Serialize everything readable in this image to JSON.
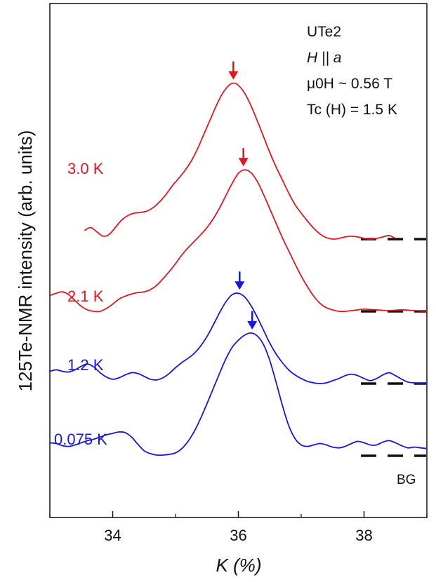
{
  "chart_data": {
    "type": "line",
    "title": "",
    "xlabel": "K (%)",
    "ylabel": "125Te-NMR intensity (arb. units)",
    "xlim": [
      33.0,
      39.0
    ],
    "x_ticks": [
      34,
      36,
      38
    ],
    "x_tick_labels": [
      "34",
      "36",
      "38"
    ],
    "y_ticks": [],
    "grid": false,
    "annotations": {
      "sample": "UTe2",
      "field_dir": "H || a",
      "field": "μ0H ~ 0.56 T",
      "tc": "Tc (H) = 1.5 K"
    },
    "bg_label": "BG",
    "colors": {
      "red": "#e8141c",
      "blue": "#1616e0",
      "black": "#111111"
    },
    "series": [
      {
        "name": "3.0 K",
        "color": "#e8141c",
        "offset": 3.0,
        "background": 0.0,
        "peak_arrow_x": 35.92,
        "x": [
          33.55,
          33.65,
          33.75,
          33.85,
          33.95,
          34.05,
          34.15,
          34.25,
          34.35,
          34.45,
          34.55,
          34.65,
          34.75,
          34.85,
          34.95,
          35.05,
          35.15,
          35.25,
          35.35,
          35.45,
          35.55,
          35.65,
          35.75,
          35.85,
          35.92,
          36.0,
          36.1,
          36.2,
          36.3,
          36.4,
          36.5,
          36.6,
          36.7,
          36.8,
          36.9,
          37.0,
          37.1,
          37.2,
          37.3,
          37.4,
          37.5,
          37.6,
          37.7,
          37.8,
          37.9,
          38.0,
          38.1,
          38.2,
          38.3,
          38.4,
          38.5
        ],
        "values": [
          0.12,
          0.16,
          0.1,
          0.04,
          0.07,
          0.17,
          0.27,
          0.33,
          0.36,
          0.37,
          0.39,
          0.44,
          0.52,
          0.62,
          0.74,
          0.84,
          0.95,
          1.08,
          1.25,
          1.45,
          1.65,
          1.85,
          2.02,
          2.13,
          2.16,
          2.13,
          2.02,
          1.85,
          1.64,
          1.42,
          1.2,
          1.0,
          0.82,
          0.64,
          0.48,
          0.36,
          0.25,
          0.15,
          0.07,
          0.02,
          0.0,
          0.01,
          0.03,
          0.04,
          0.03,
          0.01,
          0.0,
          0.01,
          0.03,
          0.05,
          0.01
        ]
      },
      {
        "name": "2.1 K",
        "color": "#e8141c",
        "offset": 2.0,
        "background": 0.0,
        "peak_arrow_x": 36.08,
        "x": [
          33.0,
          33.1,
          33.2,
          33.3,
          33.4,
          33.5,
          33.6,
          33.7,
          33.8,
          33.9,
          34.0,
          34.1,
          34.2,
          34.3,
          34.4,
          34.5,
          34.6,
          34.7,
          34.8,
          34.9,
          35.0,
          35.1,
          35.2,
          35.3,
          35.4,
          35.5,
          35.6,
          35.7,
          35.8,
          35.9,
          36.0,
          36.1,
          36.2,
          36.3,
          36.4,
          36.5,
          36.6,
          36.7,
          36.8,
          36.9,
          37.0,
          37.1,
          37.2,
          37.3,
          37.4,
          37.5,
          37.6,
          37.7,
          37.8,
          37.9,
          38.0,
          38.2,
          38.4,
          38.6,
          38.8,
          39.0
        ],
        "values": [
          0.22,
          0.25,
          0.27,
          0.23,
          0.15,
          0.07,
          0.02,
          0.0,
          0.0,
          0.04,
          0.1,
          0.17,
          0.21,
          0.24,
          0.26,
          0.27,
          0.3,
          0.36,
          0.45,
          0.55,
          0.66,
          0.78,
          0.88,
          0.97,
          1.06,
          1.16,
          1.28,
          1.43,
          1.6,
          1.77,
          1.91,
          1.96,
          1.92,
          1.8,
          1.62,
          1.42,
          1.22,
          1.02,
          0.84,
          0.66,
          0.49,
          0.34,
          0.21,
          0.11,
          0.05,
          0.02,
          0.0,
          0.0,
          0.01,
          0.02,
          0.03,
          0.02,
          0.01,
          0.02,
          0.01,
          0.0
        ]
      },
      {
        "name": "1.2 K",
        "color": "#1616e0",
        "offset": 1.0,
        "background": 0.0,
        "peak_arrow_x": 36.02,
        "x": [
          33.0,
          33.1,
          33.2,
          33.3,
          33.4,
          33.5,
          33.6,
          33.7,
          33.8,
          33.9,
          34.0,
          34.1,
          34.2,
          34.3,
          34.4,
          34.5,
          34.6,
          34.7,
          34.8,
          34.9,
          35.0,
          35.1,
          35.2,
          35.3,
          35.4,
          35.5,
          35.6,
          35.7,
          35.8,
          35.9,
          36.0,
          36.1,
          36.2,
          36.3,
          36.4,
          36.5,
          36.6,
          36.7,
          36.8,
          36.9,
          37.0,
          37.1,
          37.2,
          37.3,
          37.4,
          37.5,
          37.6,
          37.7,
          37.8,
          37.9,
          38.0,
          38.1,
          38.2,
          38.3,
          38.4,
          38.5,
          38.6,
          38.7,
          38.8,
          38.9,
          39.0
        ],
        "values": [
          0.17,
          0.19,
          0.17,
          0.16,
          0.19,
          0.24,
          0.27,
          0.23,
          0.15,
          0.09,
          0.06,
          0.08,
          0.12,
          0.15,
          0.14,
          0.1,
          0.06,
          0.05,
          0.08,
          0.14,
          0.22,
          0.29,
          0.35,
          0.42,
          0.52,
          0.65,
          0.81,
          0.98,
          1.13,
          1.23,
          1.25,
          1.2,
          1.08,
          0.92,
          0.74,
          0.56,
          0.41,
          0.29,
          0.19,
          0.12,
          0.07,
          0.03,
          0.01,
          0.0,
          0.01,
          0.04,
          0.07,
          0.11,
          0.13,
          0.11,
          0.07,
          0.04,
          0.07,
          0.12,
          0.15,
          0.11,
          0.06,
          0.02,
          0.01,
          0.0,
          0.0
        ]
      },
      {
        "name": "0.075 K",
        "color": "#1616e0",
        "offset": 0.0,
        "background": 0.0,
        "peak_arrow_x": 36.22,
        "x": [
          33.0,
          33.1,
          33.2,
          33.3,
          33.4,
          33.5,
          33.6,
          33.7,
          33.8,
          33.9,
          34.0,
          34.1,
          34.2,
          34.3,
          34.4,
          34.5,
          34.6,
          34.7,
          34.8,
          34.9,
          35.0,
          35.1,
          35.2,
          35.3,
          35.4,
          35.5,
          35.6,
          35.7,
          35.8,
          35.9,
          36.0,
          36.1,
          36.2,
          36.3,
          36.4,
          36.5,
          36.6,
          36.7,
          36.8,
          36.9,
          37.0,
          37.1,
          37.2,
          37.3,
          37.4,
          37.5,
          37.6,
          37.7,
          37.8,
          37.9,
          38.0,
          38.1,
          38.2,
          38.3,
          38.4,
          38.5,
          38.6,
          38.7,
          38.8,
          38.9,
          39.0
        ],
        "values": [
          0.18,
          0.17,
          0.14,
          0.13,
          0.15,
          0.18,
          0.21,
          0.23,
          0.26,
          0.29,
          0.31,
          0.33,
          0.32,
          0.26,
          0.16,
          0.07,
          0.03,
          0.01,
          0.01,
          0.02,
          0.04,
          0.1,
          0.2,
          0.34,
          0.52,
          0.72,
          0.93,
          1.14,
          1.34,
          1.5,
          1.6,
          1.67,
          1.7,
          1.66,
          1.54,
          1.32,
          1.02,
          0.7,
          0.42,
          0.24,
          0.15,
          0.13,
          0.15,
          0.17,
          0.15,
          0.12,
          0.11,
          0.13,
          0.17,
          0.2,
          0.18,
          0.15,
          0.15,
          0.19,
          0.21,
          0.18,
          0.14,
          0.11,
          0.12,
          0.11,
          0.1
        ]
      }
    ]
  }
}
